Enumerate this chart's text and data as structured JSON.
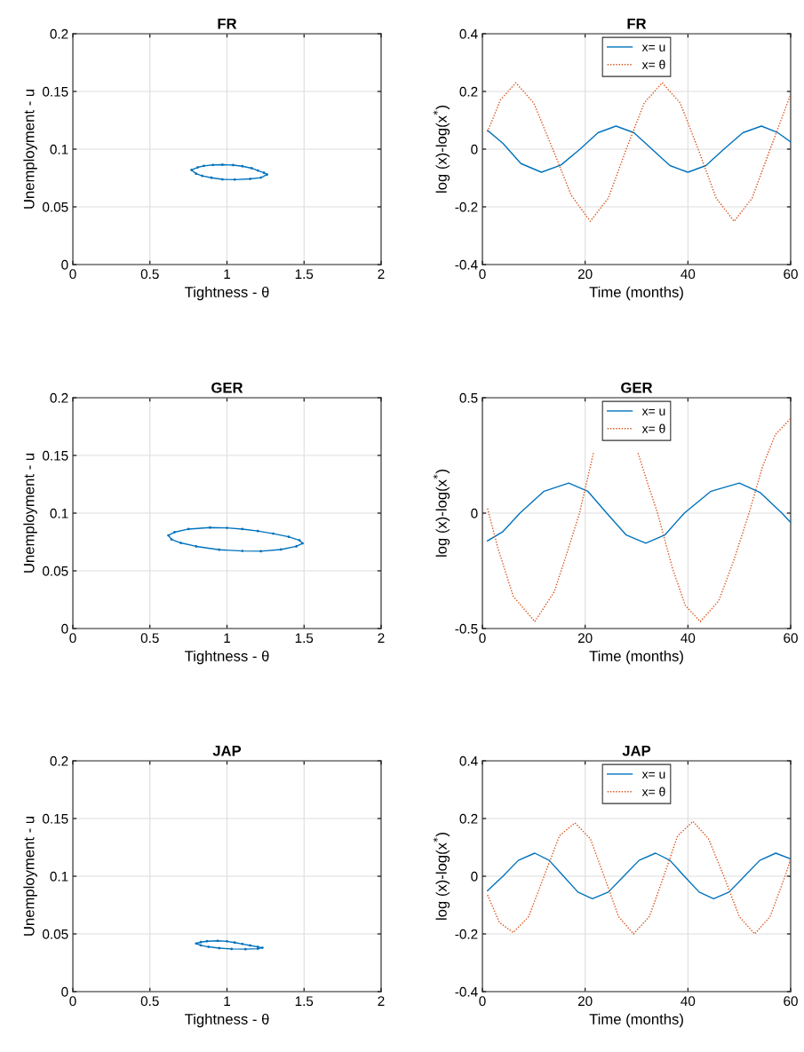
{
  "chart_data": [
    {
      "type": "line",
      "title": "FR",
      "xlabel": "Tightness - θ",
      "ylabel": "Unemployment - u",
      "xlim": [
        0,
        2
      ],
      "ylim": [
        0,
        0.2
      ],
      "xticks": [
        0,
        0.5,
        1,
        1.5,
        2
      ],
      "yticks": [
        0,
        0.05,
        0.1,
        0.15,
        0.2
      ],
      "grid": true,
      "legend": false,
      "series": [
        {
          "type": "scatter",
          "color": "#0072bd",
          "x": [
            0.77,
            0.81,
            0.85,
            0.91,
            0.97,
            1.04,
            1.1,
            1.16,
            1.2,
            1.24,
            1.26,
            1.22,
            1.15,
            1.05,
            0.97,
            0.9,
            0.84,
            0.8
          ],
          "values": [
            0.082,
            0.0842,
            0.0855,
            0.0863,
            0.0865,
            0.0862,
            0.0852,
            0.0835,
            0.0815,
            0.0795,
            0.078,
            0.0753,
            0.0742,
            0.0736,
            0.0738,
            0.0752,
            0.0768,
            0.0787
          ]
        }
      ]
    },
    {
      "type": "line",
      "title": "FR",
      "xlabel": "Time (months)",
      "ylabel": "log (x)-log(x$^{*}$)",
      "xlim": [
        0,
        60
      ],
      "ylim": [
        -0.4,
        0.4
      ],
      "xticks": [
        0,
        20,
        40,
        60
      ],
      "yticks": [
        -0.4,
        -0.2,
        0,
        0.2,
        0.4
      ],
      "grid": true,
      "legend": "top",
      "series": [
        {
          "name": "x= u",
          "color": "#0072bd",
          "line_style": "solid",
          "x": [
            1,
            4,
            7.5,
            11.5,
            15.3,
            19,
            22.5,
            26,
            29.5,
            33,
            36.5,
            40,
            43.5,
            47,
            50.7,
            54.3,
            57.5,
            60
          ],
          "values": [
            0.065,
            0.02,
            -0.05,
            -0.08,
            -0.055,
            0,
            0.057,
            0.08,
            0.057,
            0,
            -0.057,
            -0.08,
            -0.057,
            0,
            0.057,
            0.08,
            0.057,
            0.025
          ]
        },
        {
          "name": "x= θ",
          "color": "#d95319",
          "line_style": "dotted",
          "x": [
            1,
            3.5,
            6.5,
            10,
            13.7,
            17.3,
            21,
            24.5,
            28,
            31.5,
            35,
            38.5,
            42,
            45.5,
            49,
            52.5,
            56,
            60
          ],
          "values": [
            0.06,
            0.17,
            0.23,
            0.16,
            0,
            -0.16,
            -0.25,
            -0.17,
            0,
            0.16,
            0.23,
            0.16,
            0,
            -0.17,
            -0.25,
            -0.17,
            0,
            0.19
          ]
        }
      ]
    },
    {
      "type": "line",
      "title": "GER",
      "xlabel": "Tightness - θ",
      "ylabel": "Unemployment - u",
      "xlim": [
        0,
        2
      ],
      "ylim": [
        0,
        0.2
      ],
      "xticks": [
        0,
        0.5,
        1,
        1.5,
        2
      ],
      "yticks": [
        0,
        0.05,
        0.1,
        0.15,
        0.2
      ],
      "grid": true,
      "legend": false,
      "series": [
        {
          "type": "scatter",
          "color": "#0072bd",
          "x": [
            0.62,
            0.66,
            0.75,
            0.89,
            1.0,
            1.1,
            1.2,
            1.3,
            1.4,
            1.47,
            1.49,
            1.45,
            1.35,
            1.22,
            1.1,
            0.95,
            0.8,
            0.7,
            0.64
          ],
          "values": [
            0.0807,
            0.0835,
            0.0862,
            0.0875,
            0.0872,
            0.0862,
            0.0845,
            0.0822,
            0.0795,
            0.0765,
            0.0738,
            0.0712,
            0.0685,
            0.067,
            0.0672,
            0.0683,
            0.0712,
            0.0742,
            0.0772
          ]
        }
      ]
    },
    {
      "type": "line",
      "title": "GER",
      "xlabel": "Time (months)",
      "ylabel": "log (x)-log(x$^{*}$)",
      "xlim": [
        0,
        60
      ],
      "ylim": [
        -0.5,
        0.5
      ],
      "xticks": [
        0,
        20,
        40,
        60
      ],
      "yticks": [
        -0.5,
        0,
        0.5
      ],
      "grid": true,
      "legend": "top",
      "series": [
        {
          "name": "x= u",
          "color": "#0072bd",
          "line_style": "solid",
          "x": [
            1,
            4,
            7.3,
            12,
            16.8,
            20.5,
            24.2,
            28,
            31.8,
            35.5,
            39.3,
            44.5,
            50,
            54,
            58.3,
            60
          ],
          "values": [
            -0.12,
            -0.08,
            0,
            0.095,
            0.13,
            0.095,
            0,
            -0.095,
            -0.13,
            -0.095,
            0,
            0.095,
            0.13,
            0.09,
            0,
            -0.04
          ]
        },
        {
          "name": "x= θ",
          "color": "#d95319",
          "line_style": "dotted",
          "x": [
            1,
            3,
            6,
            10.2,
            14,
            16.5,
            18.9,
            21.6,
            26,
            30.3,
            32,
            34.1,
            37,
            39.5,
            42.4,
            46,
            49,
            51.9,
            54.5,
            57,
            60
          ],
          "values": [
            0.02,
            -0.15,
            -0.36,
            -0.47,
            -0.34,
            -0.17,
            0,
            0.26,
            null,
            0.26,
            0.14,
            0,
            -0.24,
            -0.4,
            -0.47,
            -0.38,
            -0.2,
            0,
            0.2,
            0.34,
            0.41
          ]
        }
      ]
    },
    {
      "type": "line",
      "title": "JAP",
      "xlabel": "Tightness - θ",
      "ylabel": "Unemployment - u",
      "xlim": [
        0,
        2
      ],
      "ylim": [
        0,
        0.2
      ],
      "xticks": [
        0,
        0.5,
        1,
        1.5,
        2
      ],
      "yticks": [
        0,
        0.05,
        0.1,
        0.15,
        0.2
      ],
      "grid": true,
      "legend": false,
      "series": [
        {
          "type": "scatter",
          "color": "#0072bd",
          "x": [
            0.8,
            0.83,
            0.87,
            0.94,
            1.0,
            1.05,
            1.1,
            1.15,
            1.2,
            1.23,
            1.2,
            1.12,
            1.03,
            0.95,
            0.88,
            0.83
          ],
          "values": [
            0.0417,
            0.0429,
            0.0437,
            0.044,
            0.0436,
            0.0425,
            0.0413,
            0.04,
            0.0388,
            0.038,
            0.0372,
            0.0368,
            0.037,
            0.0377,
            0.0388,
            0.0401
          ]
        }
      ]
    },
    {
      "type": "line",
      "title": "JAP",
      "xlabel": "Time (months)",
      "ylabel": "log (x)-log(x$^{*}$)",
      "xlim": [
        0,
        60
      ],
      "ylim": [
        -0.4,
        0.4
      ],
      "xticks": [
        0,
        20,
        40,
        60
      ],
      "yticks": [
        -0.4,
        -0.2,
        0,
        0.2,
        0.4
      ],
      "grid": true,
      "legend": "top",
      "series": [
        {
          "name": "x= u",
          "color": "#0072bd",
          "line_style": "solid",
          "x": [
            1,
            4,
            7,
            10.2,
            13,
            15.8,
            18.6,
            21.4,
            24.5,
            27.5,
            30.5,
            33.7,
            36.5,
            39.3,
            42.2,
            45,
            48,
            51,
            54,
            57.1,
            60
          ],
          "values": [
            -0.05,
            0,
            0.055,
            0.08,
            0.055,
            0,
            -0.055,
            -0.078,
            -0.055,
            0,
            0.055,
            0.08,
            0.055,
            0,
            -0.055,
            -0.078,
            -0.055,
            0,
            0.055,
            0.08,
            0.06
          ]
        },
        {
          "name": "x= θ",
          "color": "#d95319",
          "line_style": "dotted",
          "x": [
            1,
            3.3,
            6,
            9,
            12,
            15,
            18,
            21,
            23.7,
            26.5,
            29.4,
            32.5,
            35.3,
            38,
            41,
            44,
            47,
            50,
            53,
            56,
            58.9,
            60
          ],
          "values": [
            -0.065,
            -0.16,
            -0.195,
            -0.14,
            0,
            0.14,
            0.185,
            0.13,
            0,
            -0.14,
            -0.2,
            -0.14,
            0,
            0.14,
            0.19,
            0.13,
            0,
            -0.14,
            -0.2,
            -0.14,
            0,
            0.06
          ]
        }
      ]
    }
  ]
}
